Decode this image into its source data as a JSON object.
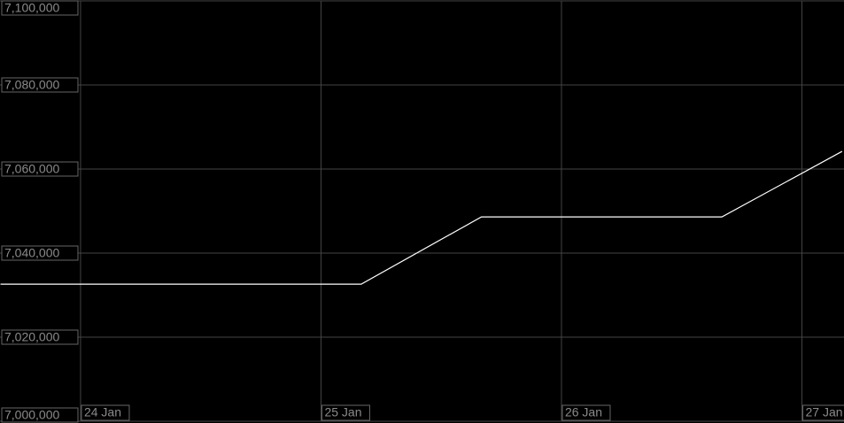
{
  "chart_data": {
    "type": "line",
    "x": [
      23.667,
      25.167,
      25.667,
      26.667,
      27.167
    ],
    "series": [
      {
        "color": "#ffffff",
        "values": [
          7032600,
          7032600,
          7048600,
          7048600,
          7064200
        ]
      }
    ],
    "xlim": [
      23.665,
      27.175
    ],
    "xticks": [
      {
        "value": 24,
        "label": "24 Jan"
      },
      {
        "value": 25,
        "label": "25 Jan"
      },
      {
        "value": 26,
        "label": "26 Jan"
      },
      {
        "value": 27,
        "label": "27 Jan"
      }
    ],
    "ylim": [
      7000000,
      7100000
    ],
    "yticks": [
      {
        "value": 7000000,
        "label": "7,000,000"
      },
      {
        "value": 7020000,
        "label": "7,020,000"
      },
      {
        "value": 7040000,
        "label": "7,040,000"
      },
      {
        "value": 7060000,
        "label": "7,060,000"
      },
      {
        "value": 7080000,
        "label": "7,080,000"
      },
      {
        "value": 7100000,
        "label": "7,100,000"
      }
    ],
    "grid": true
  }
}
